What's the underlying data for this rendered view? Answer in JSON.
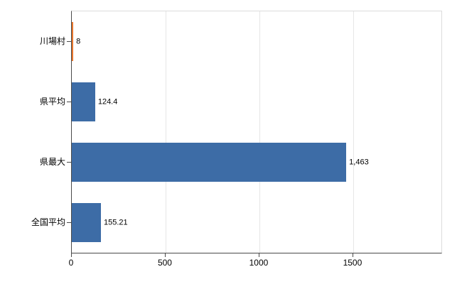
{
  "chart_data": {
    "type": "bar",
    "orientation": "horizontal",
    "title": "",
    "xlabel": "",
    "ylabel": "",
    "categories": [
      "川場村",
      "県平均",
      "県最大",
      "全国平均"
    ],
    "values": [
      8,
      124.4,
      1463,
      155.21
    ],
    "value_labels": [
      "8",
      "124.4",
      "1,463",
      "155.21"
    ],
    "bar_colors": [
      "#e8762d",
      "#3d6ca6",
      "#3d6ca6",
      "#3d6ca6"
    ],
    "x_ticks": [
      0,
      500,
      1000,
      1500
    ],
    "x_tick_labels": [
      "0",
      "500",
      "1000",
      "1500"
    ],
    "xlim": [
      0,
      1970
    ],
    "grid": true,
    "legend": "none",
    "colors": {
      "bar_default": "#3d6ca6",
      "bar_highlight": "#e8762d",
      "grid": "#e6e6e6",
      "axis": "#4a4a4a",
      "background": "#ffffff"
    }
  }
}
